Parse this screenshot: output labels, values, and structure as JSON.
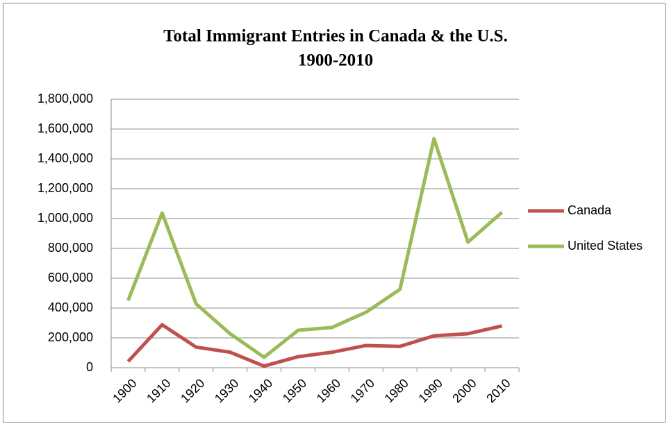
{
  "chart_data": {
    "type": "line",
    "title": "Total Immigrant Entries in Canada & the U.S.",
    "subtitle": "1900-2010",
    "categories": [
      "1900",
      "1910",
      "1920",
      "1930",
      "1940",
      "1950",
      "1960",
      "1970",
      "1980",
      "1990",
      "2000",
      "2010"
    ],
    "series": [
      {
        "name": "Canada",
        "color": "#c0504d",
        "values": [
          42000,
          288000,
          138000,
          104000,
          11000,
          74000,
          104000,
          149000,
          143000,
          214000,
          228000,
          280000
        ]
      },
      {
        "name": "United States",
        "color": "#9bbb59",
        "values": [
          451000,
          1037000,
          428000,
          228000,
          70000,
          251000,
          270000,
          372000,
          526000,
          1535000,
          842000,
          1042000
        ]
      }
    ],
    "ylim": [
      0,
      1800000
    ],
    "yticks": [
      0,
      {
        "value": 200000,
        "label": "200,000"
      },
      {
        "value": 400000,
        "label": "400,000"
      },
      {
        "value": 600000,
        "label": "600,000"
      },
      {
        "value": 800000,
        "label": "800,000"
      },
      {
        "value": 1000000,
        "label": "1,000,000"
      },
      {
        "value": 1200000,
        "label": "1,200,000"
      },
      {
        "value": 1400000,
        "label": "1,400,000"
      },
      {
        "value": 1600000,
        "label": "1,600,000"
      },
      {
        "value": 1800000,
        "label": "1,800,000"
      }
    ],
    "grid": true,
    "legend": "right"
  }
}
